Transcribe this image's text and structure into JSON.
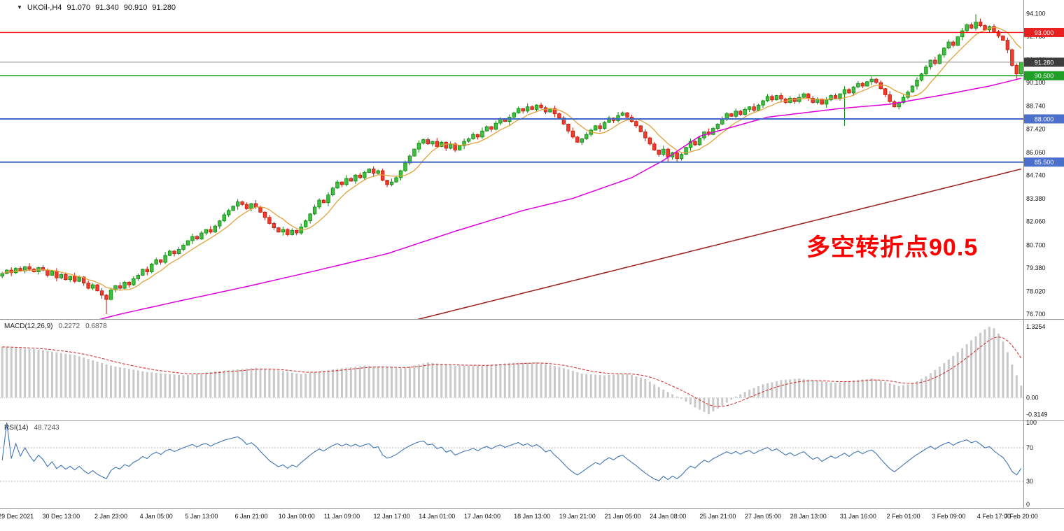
{
  "symbol_bar": {
    "collapse_icon": "▼",
    "symbol": "UKOil-,H4",
    "open": "91.070",
    "high": "91.340",
    "low": "90.910",
    "close": "91.280"
  },
  "annotation": {
    "text": "多空转折点90.5",
    "color": "#FF0000"
  },
  "price_axis": {
    "labels": [
      94.1,
      92.78,
      91.42,
      90.1,
      88.74,
      87.42,
      86.06,
      84.74,
      83.38,
      82.06,
      80.7,
      79.38,
      78.02,
      76.7
    ]
  },
  "time_axis": {
    "labels": [
      {
        "bar": 3,
        "text": "29 Dec 2021"
      },
      {
        "bar": 13,
        "text": "30 Dec 13:00"
      },
      {
        "bar": 24,
        "text": "2 Jan 23:00"
      },
      {
        "bar": 34,
        "text": "4 Jan 05:00"
      },
      {
        "bar": 44,
        "text": "5 Jan 13:00"
      },
      {
        "bar": 55,
        "text": "6 Jan 21:00"
      },
      {
        "bar": 65,
        "text": "10 Jan 00:00"
      },
      {
        "bar": 75,
        "text": "11 Jan 09:00"
      },
      {
        "bar": 86,
        "text": "12 Jan 17:00"
      },
      {
        "bar": 96,
        "text": "14 Jan 01:00"
      },
      {
        "bar": 106,
        "text": "17 Jan 04:00"
      },
      {
        "bar": 117,
        "text": "18 Jan 13:00"
      },
      {
        "bar": 127,
        "text": "19 Jan 21:00"
      },
      {
        "bar": 137,
        "text": "21 Jan 05:00"
      },
      {
        "bar": 147,
        "text": "24 Jan 08:00"
      },
      {
        "bar": 158,
        "text": "25 Jan 21:00"
      },
      {
        "bar": 168,
        "text": "27 Jan 05:00"
      },
      {
        "bar": 178,
        "text": "28 Jan 13:00"
      },
      {
        "bar": 189,
        "text": "31 Jan 16:00"
      },
      {
        "bar": 199,
        "text": "2 Feb 01:00"
      },
      {
        "bar": 209,
        "text": "3 Feb 09:00"
      },
      {
        "bar": 219,
        "text": "4 Feb 17:00"
      },
      {
        "bar": 225,
        "text": "7 Feb 20:00"
      }
    ]
  },
  "chart_data": {
    "type": "candlestick",
    "title": "UKOil-,H4",
    "timeframe": "H4",
    "ohlc_display": {
      "open": 91.07,
      "high": 91.34,
      "low": 90.91,
      "close": 91.28
    },
    "ylim": [
      76.42,
      94.88
    ],
    "last_price": 91.28,
    "first_open": 78.9,
    "closes": [
      79.05,
      79.25,
      79.1,
      79.35,
      79.2,
      79.45,
      79.3,
      79.15,
      79.4,
      79.25,
      78.95,
      79.2,
      78.8,
      79.0,
      78.7,
      78.9,
      78.6,
      78.85,
      78.5,
      78.2,
      78.4,
      78.05,
      77.8,
      77.55,
      78.1,
      78.35,
      78.2,
      78.55,
      78.4,
      78.75,
      78.95,
      79.3,
      79.15,
      79.6,
      79.85,
      79.7,
      80.1,
      80.35,
      80.2,
      80.45,
      80.7,
      80.95,
      81.2,
      81.05,
      81.4,
      81.6,
      81.45,
      81.8,
      82.1,
      82.45,
      82.7,
      82.95,
      83.2,
      83.05,
      82.8,
      83.1,
      82.9,
      82.6,
      82.3,
      81.95,
      81.7,
      81.45,
      81.6,
      81.3,
      81.55,
      81.4,
      81.75,
      82.1,
      82.5,
      82.9,
      83.3,
      83.15,
      83.6,
      84.0,
      84.35,
      84.2,
      84.55,
      84.4,
      84.75,
      84.6,
      84.9,
      85.1,
      84.85,
      85.0,
      84.45,
      84.2,
      84.35,
      84.6,
      85.0,
      85.45,
      85.85,
      86.25,
      86.6,
      86.8,
      86.55,
      86.7,
      86.4,
      86.65,
      86.3,
      86.55,
      86.2,
      86.45,
      86.7,
      86.85,
      87.1,
      86.95,
      87.3,
      87.55,
      87.4,
      87.75,
      88.0,
      87.85,
      88.1,
      88.35,
      88.6,
      88.45,
      88.7,
      88.55,
      88.8,
      88.65,
      88.4,
      88.6,
      88.3,
      88.05,
      87.7,
      87.3,
      86.95,
      86.65,
      86.85,
      87.1,
      87.35,
      87.6,
      87.45,
      87.8,
      88.05,
      87.9,
      88.2,
      88.35,
      88.1,
      87.85,
      87.6,
      87.25,
      86.9,
      86.55,
      86.2,
      85.95,
      86.25,
      85.8,
      86.05,
      85.7,
      85.95,
      86.35,
      86.7,
      86.5,
      86.9,
      87.25,
      87.1,
      87.45,
      87.7,
      88.0,
      88.3,
      88.15,
      88.45,
      88.25,
      88.55,
      88.7,
      88.5,
      88.8,
      89.05,
      89.3,
      89.1,
      89.35,
      89.15,
      88.95,
      89.2,
      89.0,
      89.25,
      89.45,
      89.2,
      88.95,
      89.15,
      88.85,
      89.1,
      89.35,
      89.2,
      89.45,
      89.7,
      89.5,
      89.85,
      90.05,
      89.9,
      90.15,
      90.3,
      90.1,
      89.75,
      89.4,
      89.0,
      88.7,
      88.95,
      89.25,
      89.55,
      89.9,
      90.25,
      90.6,
      91.0,
      91.4,
      91.2,
      91.7,
      92.1,
      92.45,
      92.25,
      92.75,
      93.1,
      93.45,
      93.25,
      93.6,
      93.4,
      93.15,
      93.35,
      93.05,
      92.8,
      92.55,
      92.0,
      91.1,
      90.6,
      91.28
    ],
    "wick_pattern": [
      0.1,
      0.04,
      0.16,
      0.07,
      0.12,
      0.03,
      0.2,
      0.08,
      0.05,
      0.14
    ],
    "special_lows": {
      "23": 76.7,
      "85": 84.05,
      "147": 85.5,
      "149": 85.52,
      "186": 87.6,
      "224": 90.32
    },
    "special_highs": {
      "215": 94.05
    },
    "colors": {
      "up": "#3FBF3F",
      "up_border": "#0E860E",
      "down": "#F03B2D",
      "down_border": "#C01808"
    },
    "hlines": [
      {
        "name": "resistance-line-93",
        "price": 93.0,
        "color": "#F21616",
        "width": 1.3,
        "badge": "#E82020"
      },
      {
        "name": "pivot-line-90-5",
        "price": 90.5,
        "color": "#22A52B",
        "width": 1.6,
        "badge": "#1F9E28"
      },
      {
        "name": "support-line-88",
        "price": 88.0,
        "color": "#4468C8",
        "width": 2.0,
        "badge": "#4A70CC"
      },
      {
        "name": "support-line-85-5",
        "price": 85.5,
        "color": "#4468C8",
        "width": 2.0,
        "badge": "#4A70CC"
      }
    ],
    "last_price_line": {
      "color": "#8A8A8A",
      "badge": "#3D3D3D"
    },
    "overlays": [
      {
        "name": "ma-fast",
        "color": "#E2A13C",
        "type": "sma",
        "period": 8,
        "width": 1.3
      },
      {
        "name": "ma-mid",
        "color": "#DD00DD",
        "type": "anchors",
        "width": 1.5,
        "points": [
          [
            20,
            76.3
          ],
          [
            26,
            76.7
          ],
          [
            38,
            77.4
          ],
          [
            54,
            78.3
          ],
          [
            69,
            79.2
          ],
          [
            85,
            80.2
          ],
          [
            100,
            81.5
          ],
          [
            115,
            82.7
          ],
          [
            126,
            83.4
          ],
          [
            139,
            84.6
          ],
          [
            146,
            85.6
          ],
          [
            154,
            87.0
          ],
          [
            169,
            88.1
          ],
          [
            185,
            88.6
          ],
          [
            196,
            88.85
          ],
          [
            208,
            89.4
          ],
          [
            218,
            89.9
          ],
          [
            225,
            90.35
          ]
        ]
      },
      {
        "name": "ma-slow",
        "color": "#9C1C1C",
        "type": "anchors",
        "width": 1.5,
        "points": [
          [
            78,
            75.5
          ],
          [
            225,
            85.1
          ]
        ]
      }
    ],
    "indicators": {
      "macd": {
        "label": "MACD(12,26,9)",
        "value_main": "0.2272",
        "value_signal": "0.6878",
        "range": [
          -0.36,
          1.42
        ],
        "axis_labels": [
          {
            "text": "1.3254",
            "v": 1.3254
          },
          {
            "text": "0.00",
            "v": 0
          },
          {
            "text": "-0.3149",
            "v": -0.3149
          }
        ],
        "hist_color": "#C9C9C9",
        "signal_color": "#D03838",
        "signal_period": 9,
        "anchors": [
          [
            0,
            0.95
          ],
          [
            8,
            0.9
          ],
          [
            16,
            0.8
          ],
          [
            24,
            0.6
          ],
          [
            32,
            0.48
          ],
          [
            40,
            0.42
          ],
          [
            48,
            0.5
          ],
          [
            56,
            0.56
          ],
          [
            62,
            0.5
          ],
          [
            66,
            0.44
          ],
          [
            72,
            0.52
          ],
          [
            80,
            0.6
          ],
          [
            88,
            0.55
          ],
          [
            94,
            0.66
          ],
          [
            100,
            0.6
          ],
          [
            106,
            0.6
          ],
          [
            112,
            0.65
          ],
          [
            118,
            0.66
          ],
          [
            123,
            0.58
          ],
          [
            128,
            0.45
          ],
          [
            133,
            0.42
          ],
          [
            138,
            0.45
          ],
          [
            142,
            0.35
          ],
          [
            146,
            0.15
          ],
          [
            150,
            -0.02
          ],
          [
            153,
            -0.18
          ],
          [
            156,
            -0.31
          ],
          [
            159,
            -0.15
          ],
          [
            162,
            0.02
          ],
          [
            165,
            0.15
          ],
          [
            168,
            0.25
          ],
          [
            172,
            0.33
          ],
          [
            176,
            0.36
          ],
          [
            180,
            0.32
          ],
          [
            184,
            0.28
          ],
          [
            188,
            0.32
          ],
          [
            192,
            0.36
          ],
          [
            195,
            0.3
          ],
          [
            198,
            0.22
          ],
          [
            201,
            0.26
          ],
          [
            204,
            0.4
          ],
          [
            207,
            0.58
          ],
          [
            210,
            0.78
          ],
          [
            213,
            1.0
          ],
          [
            215,
            1.15
          ],
          [
            217,
            1.28
          ],
          [
            218,
            1.3254
          ],
          [
            219,
            1.3
          ],
          [
            220,
            1.2
          ],
          [
            221,
            1.05
          ],
          [
            222,
            0.85
          ],
          [
            223,
            0.62
          ],
          [
            224,
            0.42
          ],
          [
            225,
            0.2272
          ]
        ]
      },
      "rsi": {
        "label": "RSI(14)",
        "value": "48.7243",
        "period": 14,
        "range": [
          0,
          100
        ],
        "levels": [
          70,
          30
        ],
        "axis_labels": [
          100,
          70,
          30,
          0
        ],
        "color": "#3E74B4",
        "level_color": "#BBBBBB"
      }
    }
  }
}
